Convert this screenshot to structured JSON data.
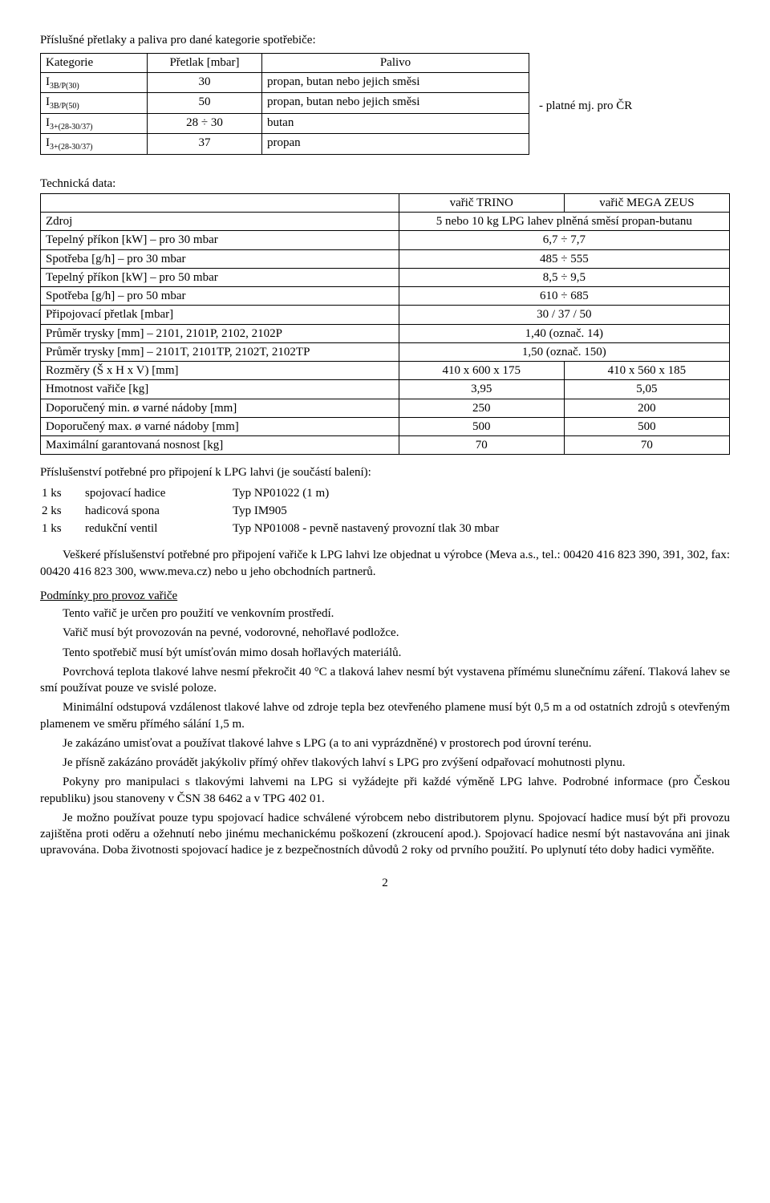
{
  "intro_line": "Příslušné přetlaky a paliva pro dané kategorie spotřebiče:",
  "cat_table": {
    "headers": [
      "Kategorie",
      "Přetlak [mbar]",
      "Palivo"
    ],
    "rows": [
      [
        "I",
        "3B/P(30)",
        "30",
        "propan, butan nebo jejich směsi"
      ],
      [
        "I",
        "3B/P(50)",
        "50",
        "propan, butan nebo jejich směsi"
      ],
      [
        "I",
        "3+(28-30/37)",
        "28 ÷ 30",
        "butan"
      ],
      [
        "I",
        "3+(28-30/37)",
        "37",
        "propan"
      ]
    ],
    "col_widths": [
      "120px",
      "130px",
      "320px"
    ]
  },
  "side_note": "- platné mj. pro ČR",
  "tech_data_title": "Technická data:",
  "spec_table": {
    "rows": [
      [
        "",
        "vařič TRINO",
        "vařič MEGA ZEUS"
      ],
      [
        "Zdroj",
        "5 nebo 10 kg LPG lahev plněná směsí propan-butanu"
      ],
      [
        "Tepelný příkon [kW] – pro 30 mbar",
        "6,7 ÷ 7,7"
      ],
      [
        "Spotřeba [g/h] – pro 30 mbar",
        "485 ÷ 555"
      ],
      [
        "Tepelný příkon [kW] – pro 50 mbar",
        "8,5 ÷ 9,5"
      ],
      [
        "Spotřeba [g/h] – pro 50 mbar",
        "610 ÷ 685"
      ],
      [
        "Připojovací přetlak [mbar]",
        "30 / 37 / 50"
      ],
      [
        "Průměr trysky [mm] – 2101, 2101P, 2102, 2102P",
        "1,40 (označ. 14)"
      ],
      [
        "Průměr trysky [mm] – 2101T, 2101TP, 2102T, 2102TP",
        "1,50 (označ. 150)"
      ],
      [
        "Rozměry (Š x H x V) [mm]",
        "410 x 600 x 175",
        "410 x 560 x 185"
      ],
      [
        "Hmotnost vařiče [kg]",
        "3,95",
        "5,05"
      ],
      [
        "Doporučený min. ø varné nádoby [mm]",
        "250",
        "200"
      ],
      [
        "Doporučený max. ø varné nádoby [mm]",
        "500",
        "500"
      ],
      [
        "Maximální garantovaná nosnost [kg]",
        "70",
        "70"
      ]
    ],
    "merge_two_from": 1,
    "merge_two_to": 8,
    "col_widths": [
      "52%",
      "24%",
      "24%"
    ]
  },
  "accessories_title": "Příslušenství potřebné pro připojení k LPG lahvi (je součástí balení):",
  "accessories": [
    [
      "1 ks",
      "spojovací hadice",
      "Typ NP01022 (1 m)"
    ],
    [
      "2 ks",
      "hadicová spona",
      "Typ IM905"
    ],
    [
      "1 ks",
      "redukční ventil",
      "Typ NP01008 - pevně nastavený provozní tlak 30 mbar"
    ]
  ],
  "paras": {
    "p1": "Veškeré příslušenství potřebné pro připojení vařiče k LPG lahvi lze objednat u výrobce (Meva a.s., tel.: 00420 416 823 390, 391, 302, fax: 00420 416 823 300, www.meva.cz) nebo u jeho obchodních partnerů.",
    "cond_title": "Podmínky pro provoz vařiče",
    "p2": "Tento vařič je určen pro použití ve venkovním prostředí.",
    "p3": "Vařič musí být provozován na pevné, vodorovné, nehořlavé podložce.",
    "p4": "Tento spotřebič musí být umísťován mimo dosah hořlavých materiálů.",
    "p5": "Povrchová teplota tlakové lahve nesmí překročit 40 °C a tlaková lahev nesmí být vystavena přímému slunečnímu záření. Tlaková lahev se smí používat pouze ve svislé poloze.",
    "p6": "Minimální odstupová vzdálenost tlakové lahve od zdroje tepla bez otevřeného plamene musí být 0,5 m a od ostatních zdrojů s otevřeným plamenem ve směru přímého sálání 1,5 m.",
    "p7": "Je zakázáno umisťovat a používat tlakové lahve s LPG (a to ani vyprázdněné) v prostorech pod úrovní terénu.",
    "p8": "Je přísně zakázáno provádět jakýkoliv přímý ohřev tlakových lahví s LPG pro zvýšení odpařovací mohutnosti plynu.",
    "p9": "Pokyny pro manipulaci s tlakovými lahvemi na LPG si vyžádejte při každé výměně LPG lahve. Podrobné informace (pro Českou republiku) jsou stanoveny v ČSN 38 6462 a v TPG 402 01.",
    "p10": "Je možno používat pouze typu spojovací hadice schválené výrobcem nebo distributorem plynu. Spojovací hadice musí být při provozu zajištěna proti oděru a ožehnutí nebo jinému mechanickému poškození (zkroucení apod.). Spojovací hadice nesmí být nastavována ani jinak upravována. Doba životnosti spojovací hadice je z bezpečnostních důvodů 2 roky od prvního použití. Po uplynutí této doby hadici vyměňte."
  },
  "page_number": "2",
  "colors": {
    "text": "#000000",
    "bg": "#ffffff",
    "border": "#000000"
  },
  "font_sizes": {
    "body": 15,
    "sub": 10
  }
}
